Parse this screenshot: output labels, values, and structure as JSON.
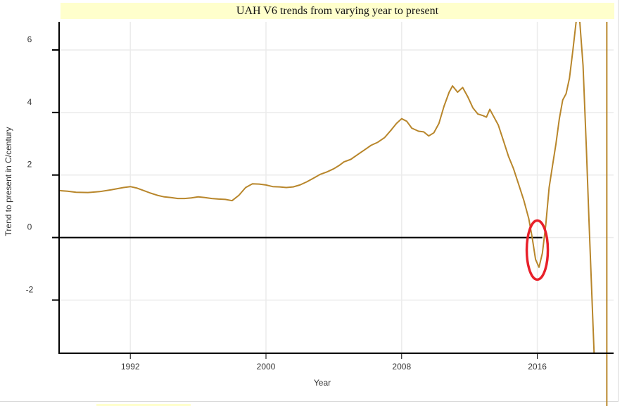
{
  "chart_data": {
    "type": "line",
    "title": "UAH V6 trends from varying year to present",
    "xlabel": "Year",
    "ylabel": "Trend to present in C/century",
    "xlim": [
      1987.8,
      2020.5
    ],
    "ylim": [
      -3.7,
      6.9
    ],
    "x_ticks": [
      1992,
      2000,
      2008,
      2016
    ],
    "y_ticks": [
      -2,
      0,
      2,
      4,
      6
    ],
    "grid": true,
    "legend": "none",
    "colors": {
      "series": "#b8862b",
      "zero_line": "#000000",
      "grid": "#ebebeb",
      "annotation": "#e8202a",
      "title_bg": "#ffffcc"
    },
    "series": [
      {
        "x": [
          1987.8,
          1988.3,
          1988.8,
          1989.5,
          1990.2,
          1990.9,
          1991.6,
          1992.0,
          1992.4,
          1992.8,
          1993.2,
          1993.6,
          1994.0,
          1994.4,
          1994.8,
          1995.2,
          1995.6,
          1996.0,
          1996.4,
          1996.8,
          1997.2,
          1997.6,
          1998.0,
          1998.4,
          1998.8,
          1999.2,
          1999.6,
          2000.0,
          2000.4,
          2000.8,
          2001.2,
          2001.6,
          2002.0,
          2002.4,
          2002.8,
          2003.2,
          2003.6,
          2004.0,
          2004.3,
          2004.6,
          2005.0,
          2005.4,
          2005.8,
          2006.2,
          2006.6,
          2007.0,
          2007.4,
          2007.7,
          2008.0,
          2008.3,
          2008.6,
          2009.0,
          2009.3,
          2009.6,
          2009.9,
          2010.2,
          2010.5,
          2010.8,
          2011.0,
          2011.3,
          2011.6,
          2011.9,
          2012.2,
          2012.5,
          2012.8,
          2013.0,
          2013.2,
          2013.4,
          2013.7,
          2014.0,
          2014.3,
          2014.6,
          2014.9,
          2015.2,
          2015.5,
          2015.7,
          2015.9,
          2016.1,
          2016.3,
          2016.5,
          2016.7,
          2016.9,
          2017.1,
          2017.3,
          2017.5,
          2017.7,
          2017.9,
          2018.1,
          2018.3,
          2018.5,
          2018.7,
          2018.9,
          2019.05,
          2019.2,
          2019.35
        ],
        "y": [
          1.5,
          1.48,
          1.45,
          1.44,
          1.47,
          1.53,
          1.6,
          1.63,
          1.58,
          1.5,
          1.42,
          1.35,
          1.3,
          1.28,
          1.25,
          1.25,
          1.27,
          1.3,
          1.28,
          1.25,
          1.23,
          1.22,
          1.18,
          1.35,
          1.6,
          1.72,
          1.71,
          1.68,
          1.63,
          1.62,
          1.6,
          1.62,
          1.68,
          1.78,
          1.9,
          2.02,
          2.1,
          2.2,
          2.3,
          2.42,
          2.5,
          2.65,
          2.8,
          2.95,
          3.05,
          3.2,
          3.45,
          3.65,
          3.8,
          3.72,
          3.5,
          3.4,
          3.38,
          3.25,
          3.35,
          3.65,
          4.2,
          4.65,
          4.85,
          4.65,
          4.8,
          4.5,
          4.15,
          3.95,
          3.9,
          3.85,
          4.1,
          3.9,
          3.6,
          3.1,
          2.6,
          2.2,
          1.7,
          1.2,
          0.6,
          0.0,
          -0.7,
          -0.95,
          -0.5,
          0.4,
          1.6,
          2.3,
          3.0,
          3.8,
          4.4,
          4.6,
          5.1,
          6.0,
          6.95,
          6.95,
          5.5,
          2.8,
          0.5,
          -1.6,
          -3.7
        ]
      }
    ],
    "verticals": [
      2020.1
    ],
    "annotations": [
      {
        "shape": "ellipse",
        "center": [
          2016.0,
          -0.4
        ]
      }
    ]
  }
}
